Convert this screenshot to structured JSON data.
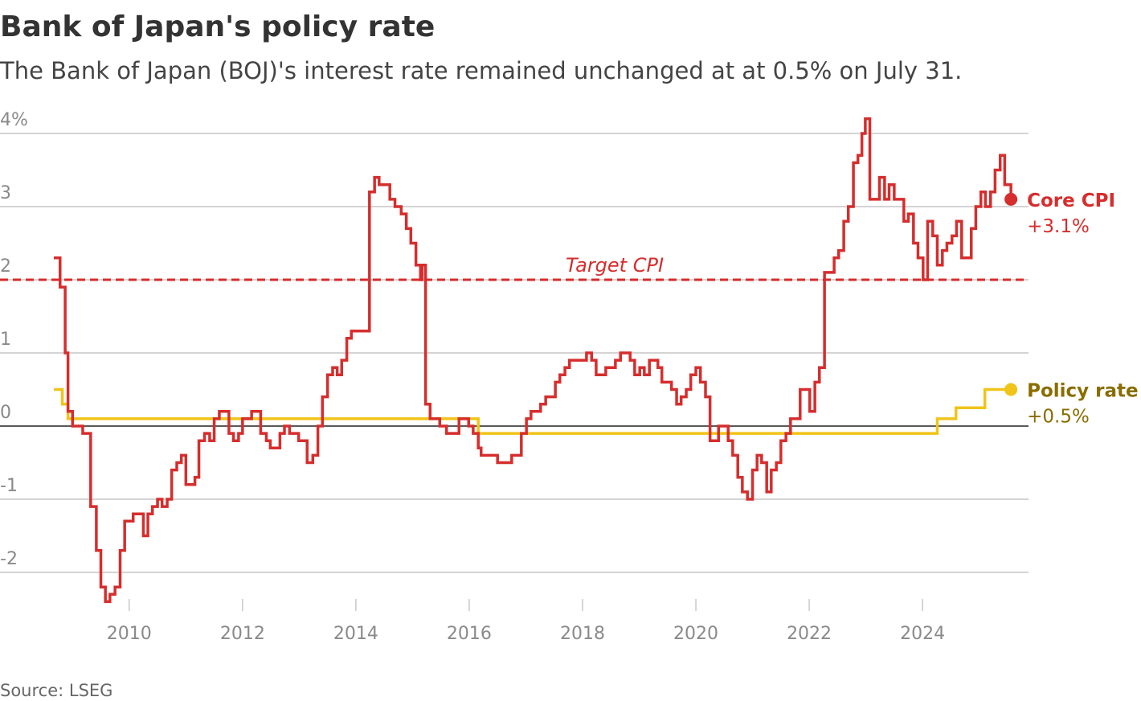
{
  "chart_data": {
    "type": "line",
    "title": "Bank of Japan's policy rate",
    "subtitle": "The Bank of Japan (BOJ)'s interest rate remained unchanged at at 0.5% on July 31.",
    "source": "Source: LSEG",
    "xlim": [
      2007.72,
      2025.87
    ],
    "xticks": [
      2010,
      2012,
      2014,
      2016,
      2018,
      2020,
      2022,
      2024
    ],
    "ylim": [
      -2.5,
      4.3
    ],
    "yticks": [
      {
        "value": 4,
        "label": "4%"
      },
      3,
      2,
      1,
      0,
      -1,
      -2
    ],
    "grid": true,
    "target": {
      "label": "Target CPI",
      "value": 2,
      "color": "#d62d2d"
    },
    "series": [
      {
        "name": "Core CPI",
        "color": "#d62d2d",
        "end_label": "+3.1%",
        "x": [
          2008.67,
          2008.78,
          2008.87,
          2008.92,
          2009.0,
          2009.18,
          2009.32,
          2009.42,
          2009.5,
          2009.58,
          2009.66,
          2009.75,
          2009.84,
          2009.92,
          2010.07,
          2010.25,
          2010.33,
          2010.41,
          2010.5,
          2010.58,
          2010.67,
          2010.75,
          2010.84,
          2010.92,
          2011.0,
          2011.16,
          2011.23,
          2011.33,
          2011.42,
          2011.5,
          2011.59,
          2011.76,
          2011.84,
          2011.93,
          2012.0,
          2012.16,
          2012.32,
          2012.42,
          2012.49,
          2012.66,
          2012.74,
          2012.83,
          2012.99,
          2013.14,
          2013.24,
          2013.33,
          2013.41,
          2013.5,
          2013.59,
          2013.67,
          2013.75,
          2013.84,
          2013.92,
          2014.24,
          2014.33,
          2014.41,
          2014.6,
          2014.69,
          2014.8,
          2014.89,
          2014.97,
          2015.06,
          2015.14,
          2015.17,
          2015.23,
          2015.31,
          2015.48,
          2015.6,
          2015.82,
          2015.99,
          2016.07,
          2016.16,
          2016.21,
          2016.5,
          2016.75,
          2016.92,
          2017.01,
          2017.09,
          2017.26,
          2017.35,
          2017.52,
          2017.6,
          2017.69,
          2017.77,
          2018.07,
          2018.16,
          2018.24,
          2018.41,
          2018.58,
          2018.67,
          2018.84,
          2018.92,
          2019.01,
          2019.09,
          2019.18,
          2019.33,
          2019.4,
          2019.57,
          2019.66,
          2019.74,
          2019.83,
          2019.91,
          2020.0,
          2020.08,
          2020.17,
          2020.25,
          2020.4,
          2020.57,
          2020.65,
          2020.74,
          2020.82,
          2020.91,
          2021.0,
          2021.08,
          2021.16,
          2021.25,
          2021.33,
          2021.42,
          2021.5,
          2021.59,
          2021.67,
          2021.84,
          2021.93,
          2022.01,
          2022.1,
          2022.18,
          2022.27,
          2022.35,
          2022.44,
          2022.52,
          2022.61,
          2022.69,
          2022.78,
          2022.86,
          2022.93,
          2022.99,
          2023.07,
          2023.24,
          2023.33,
          2023.41,
          2023.5,
          2023.67,
          2023.75,
          2023.84,
          2023.92,
          2024.01,
          2024.09,
          2024.18,
          2024.26,
          2024.35,
          2024.43,
          2024.52,
          2024.6,
          2024.69,
          2024.86,
          2024.94,
          2025.03,
          2025.11,
          2025.2,
          2025.28,
          2025.37,
          2025.45,
          2025.56
        ],
        "values": [
          2.3,
          1.9,
          1.0,
          0.2,
          0,
          -0.1,
          -1.1,
          -1.7,
          -2.2,
          -2.4,
          -2.3,
          -2.2,
          -1.7,
          -1.3,
          -1.2,
          -1.5,
          -1.2,
          -1.1,
          -1.0,
          -1.1,
          -1.0,
          -0.6,
          -0.5,
          -0.4,
          -0.8,
          -0.7,
          -0.2,
          -0.1,
          -0.2,
          0.1,
          0.2,
          -0.1,
          -0.2,
          -0.1,
          0.1,
          0.2,
          -0.1,
          -0.2,
          -0.3,
          -0.1,
          0,
          -0.1,
          -0.2,
          -0.5,
          -0.4,
          0,
          0.4,
          0.7,
          0.8,
          0.7,
          0.9,
          1.2,
          1.3,
          3.2,
          3.4,
          3.3,
          3.1,
          3.0,
          2.9,
          2.7,
          2.5,
          2.2,
          2.0,
          2.2,
          0.3,
          0.1,
          0,
          -0.1,
          0.1,
          0,
          -0.1,
          -0.3,
          -0.4,
          -0.5,
          -0.4,
          -0.1,
          0.1,
          0.2,
          0.3,
          0.4,
          0.6,
          0.7,
          0.8,
          0.9,
          1.0,
          0.9,
          0.7,
          0.8,
          0.9,
          1.0,
          0.9,
          0.7,
          0.8,
          0.7,
          0.9,
          0.8,
          0.6,
          0.5,
          0.3,
          0.4,
          0.5,
          0.7,
          0.8,
          0.6,
          0.4,
          -0.2,
          0,
          -0.2,
          -0.4,
          -0.7,
          -0.9,
          -1.0,
          -0.6,
          -0.4,
          -0.5,
          -0.9,
          -0.6,
          -0.5,
          -0.2,
          -0.1,
          0.1,
          0.5,
          0.5,
          0.2,
          0.6,
          0.8,
          2.1,
          2.1,
          2.3,
          2.4,
          2.8,
          3.0,
          3.6,
          3.7,
          4.0,
          4.2,
          3.1,
          3.4,
          3.1,
          3.3,
          3.1,
          2.8,
          2.9,
          2.5,
          2.3,
          2.0,
          2.8,
          2.6,
          2.2,
          2.4,
          2.5,
          2.6,
          2.8,
          2.3,
          2.7,
          3.0,
          3.2,
          3.0,
          3.2,
          3.5,
          3.7,
          3.3,
          3.1
        ]
      },
      {
        "name": "Policy rate",
        "color": "#f0c419",
        "label_color": "#8a6d00",
        "end_label": "+0.5%",
        "x": [
          2008.67,
          2008.82,
          2008.92,
          2016.16,
          2024.26,
          2024.59,
          2025.1,
          2025.56
        ],
        "values": [
          0.5,
          0.3,
          0.1,
          -0.1,
          0.1,
          0.25,
          0.5,
          0.5
        ]
      }
    ]
  }
}
